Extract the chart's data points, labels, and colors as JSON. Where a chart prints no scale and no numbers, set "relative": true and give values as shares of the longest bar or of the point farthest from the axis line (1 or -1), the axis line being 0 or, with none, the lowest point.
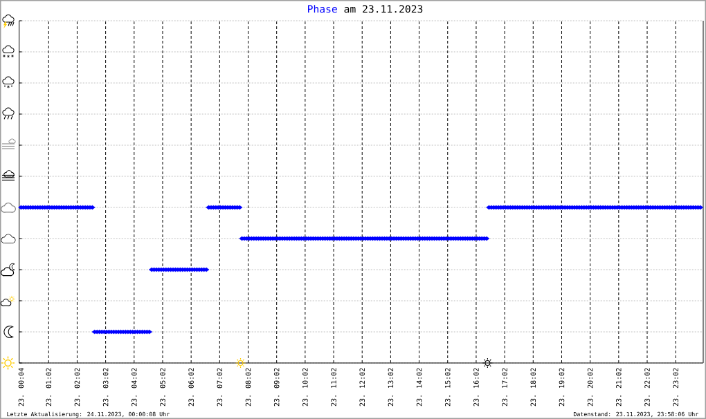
{
  "chart_data": {
    "type": "scatter",
    "title": "Phase am 23.11.2023",
    "relative": true,
    "xlim": [
      "2023-11-23T00:00",
      "2023-11-24T00:00"
    ],
    "xticks": [
      {
        "value": "2023-11-23T00:04",
        "label": "23. 00:04"
      },
      {
        "value": "2023-11-23T01:02",
        "label": "23. 01:02"
      },
      {
        "value": "2023-11-23T02:02",
        "label": "23. 02:02"
      },
      {
        "value": "2023-11-23T03:02",
        "label": "23. 03:02"
      },
      {
        "value": "2023-11-23T04:02",
        "label": "23. 04:02"
      },
      {
        "value": "2023-11-23T05:02",
        "label": "23. 05:02"
      },
      {
        "value": "2023-11-23T06:02",
        "label": "23. 06:02"
      },
      {
        "value": "2023-11-23T07:02",
        "label": "23. 07:02"
      },
      {
        "value": "2023-11-23T08:02",
        "label": "23. 08:02"
      },
      {
        "value": "2023-11-23T09:02",
        "label": "23. 09:02"
      },
      {
        "value": "2023-11-23T10:02",
        "label": "23. 10:02"
      },
      {
        "value": "2023-11-23T11:02",
        "label": "23. 11:02"
      },
      {
        "value": "2023-11-23T12:02",
        "label": "23. 12:02"
      },
      {
        "value": "2023-11-23T13:02",
        "label": "23. 13:02"
      },
      {
        "value": "2023-11-23T14:02",
        "label": "23. 14:02"
      },
      {
        "value": "2023-11-23T15:02",
        "label": "23. 15:02"
      },
      {
        "value": "2023-11-23T16:02",
        "label": "23. 16:02"
      },
      {
        "value": "2023-11-23T17:02",
        "label": "23. 17:02"
      },
      {
        "value": "2023-11-23T18:02",
        "label": "23. 18:02"
      },
      {
        "value": "2023-11-23T19:02",
        "label": "23. 19:02"
      },
      {
        "value": "2023-11-23T20:02",
        "label": "23. 20:02"
      },
      {
        "value": "2023-11-23T21:02",
        "label": "23. 21:02"
      },
      {
        "value": "2023-11-23T22:02",
        "label": "23. 22:02"
      },
      {
        "value": "2023-11-23T23:02",
        "label": "23. 23:02"
      }
    ],
    "tick_labels": "x",
    "grid": true,
    "series": [
      {
        "color": "#0000ff",
        "marker": "diamond",
        "x": [
          "2023-11-23T00:04",
          "2023-11-23T00:09",
          "2023-11-23T00:14",
          "2023-11-23T00:19",
          "2023-11-23T00:24",
          "2023-11-23T00:29",
          "2023-11-23T00:34",
          "2023-11-23T00:39",
          "2023-11-23T00:44",
          "2023-11-23T00:49",
          "2023-11-23T00:54",
          "2023-11-23T00:59",
          "2023-11-23T01:04",
          "2023-11-23T01:09",
          "2023-11-23T01:14",
          "2023-11-23T01:19",
          "2023-11-23T01:24",
          "2023-11-23T01:29",
          "2023-11-23T01:34",
          "2023-11-23T01:39",
          "2023-11-23T01:44",
          "2023-11-23T01:49",
          "2023-11-23T01:54",
          "2023-11-23T01:59",
          "2023-11-23T02:04",
          "2023-11-23T02:09",
          "2023-11-23T02:14",
          "2023-11-23T02:19",
          "2023-11-23T02:24",
          "2023-11-23T02:29",
          "2023-11-23T02:34",
          "2023-11-23T02:39",
          "2023-11-23T02:44",
          "2023-11-23T02:49",
          "2023-11-23T02:54",
          "2023-11-23T02:59",
          "2023-11-23T03:04",
          "2023-11-23T03:09",
          "2023-11-23T03:14",
          "2023-11-23T03:19",
          "2023-11-23T03:24",
          "2023-11-23T03:29",
          "2023-11-23T03:34",
          "2023-11-23T03:39",
          "2023-11-23T03:44",
          "2023-11-23T03:49",
          "2023-11-23T03:54",
          "2023-11-23T03:59",
          "2023-11-23T04:04",
          "2023-11-23T04:09",
          "2023-11-23T04:14",
          "2023-11-23T04:19",
          "2023-11-23T04:24",
          "2023-11-23T04:29",
          "2023-11-23T04:34",
          "2023-11-23T04:39",
          "2023-11-23T04:44",
          "2023-11-23T04:49",
          "2023-11-23T04:54",
          "2023-11-23T04:59",
          "2023-11-23T05:04",
          "2023-11-23T05:09",
          "2023-11-23T05:14",
          "2023-11-23T05:19",
          "2023-11-23T05:24",
          "2023-11-23T05:29",
          "2023-11-23T05:34",
          "2023-11-23T05:39",
          "2023-11-23T05:44",
          "2023-11-23T05:49",
          "2023-11-23T05:54",
          "2023-11-23T05:59",
          "2023-11-23T06:04",
          "2023-11-23T06:09",
          "2023-11-23T06:14",
          "2023-11-23T06:19",
          "2023-11-23T06:24",
          "2023-11-23T06:29",
          "2023-11-23T06:34",
          "2023-11-23T06:39",
          "2023-11-23T06:44",
          "2023-11-23T06:49",
          "2023-11-23T06:54",
          "2023-11-23T06:59",
          "2023-11-23T07:04",
          "2023-11-23T07:09",
          "2023-11-23T07:14",
          "2023-11-23T07:19",
          "2023-11-23T07:24",
          "2023-11-23T07:29",
          "2023-11-23T07:34",
          "2023-11-23T07:39",
          "2023-11-23T07:44",
          "2023-11-23T07:49",
          "2023-11-23T07:54",
          "2023-11-23T07:59",
          "2023-11-23T08:04",
          "2023-11-23T08:09",
          "2023-11-23T08:14",
          "2023-11-23T08:19",
          "2023-11-23T08:24",
          "2023-11-23T08:29",
          "2023-11-23T08:34",
          "2023-11-23T08:39",
          "2023-11-23T08:44",
          "2023-11-23T08:49",
          "2023-11-23T08:54",
          "2023-11-23T08:59",
          "2023-11-23T09:04",
          "2023-11-23T09:09",
          "2023-11-23T09:14",
          "2023-11-23T09:19",
          "2023-11-23T09:24",
          "2023-11-23T09:29",
          "2023-11-23T09:34",
          "2023-11-23T09:39",
          "2023-11-23T09:44",
          "2023-11-23T09:49",
          "2023-11-23T09:54",
          "2023-11-23T09:59",
          "2023-11-23T10:04",
          "2023-11-23T10:09",
          "2023-11-23T10:14",
          "2023-11-23T10:19",
          "2023-11-23T10:24",
          "2023-11-23T10:29",
          "2023-11-23T10:34",
          "2023-11-23T10:39",
          "2023-11-23T10:44",
          "2023-11-23T10:49",
          "2023-11-23T10:54",
          "2023-11-23T10:59",
          "2023-11-23T11:04",
          "2023-11-23T11:09",
          "2023-11-23T11:14",
          "2023-11-23T11:19",
          "2023-11-23T11:24",
          "2023-11-23T11:29",
          "2023-11-23T11:34",
          "2023-11-23T11:39",
          "2023-11-23T11:44",
          "2023-11-23T11:49",
          "2023-11-23T11:54",
          "2023-11-23T11:59",
          "2023-11-23T12:04",
          "2023-11-23T12:09",
          "2023-11-23T12:14",
          "2023-11-23T12:19",
          "2023-11-23T12:24",
          "2023-11-23T12:29",
          "2023-11-23T12:34",
          "2023-11-23T12:39",
          "2023-11-23T12:44",
          "2023-11-23T12:49",
          "2023-11-23T12:54",
          "2023-11-23T12:59",
          "2023-11-23T13:04",
          "2023-11-23T13:09",
          "2023-11-23T13:14",
          "2023-11-23T13:19",
          "2023-11-23T13:24",
          "2023-11-23T13:29",
          "2023-11-23T13:34",
          "2023-11-23T13:39",
          "2023-11-23T13:44",
          "2023-11-23T13:49",
          "2023-11-23T13:54",
          "2023-11-23T13:59",
          "2023-11-23T14:04",
          "2023-11-23T14:09",
          "2023-11-23T14:14",
          "2023-11-23T14:19",
          "2023-11-23T14:24",
          "2023-11-23T14:29",
          "2023-11-23T14:34",
          "2023-11-23T14:39",
          "2023-11-23T14:44",
          "2023-11-23T14:49",
          "2023-11-23T14:54",
          "2023-11-23T14:59",
          "2023-11-23T15:04",
          "2023-11-23T15:09",
          "2023-11-23T15:14",
          "2023-11-23T15:19",
          "2023-11-23T15:24",
          "2023-11-23T15:29",
          "2023-11-23T15:34",
          "2023-11-23T15:39",
          "2023-11-23T15:44",
          "2023-11-23T15:49",
          "2023-11-23T15:54",
          "2023-11-23T15:59",
          "2023-11-23T16:04",
          "2023-11-23T16:09",
          "2023-11-23T16:14",
          "2023-11-23T16:19",
          "2023-11-23T16:24",
          "2023-11-23T16:29",
          "2023-11-23T16:34",
          "2023-11-23T16:39",
          "2023-11-23T16:44",
          "2023-11-23T16:49",
          "2023-11-23T16:54",
          "2023-11-23T16:59",
          "2023-11-23T17:04",
          "2023-11-23T17:09",
          "2023-11-23T17:14",
          "2023-11-23T17:19",
          "2023-11-23T17:24",
          "2023-11-23T17:29",
          "2023-11-23T17:34",
          "2023-11-23T17:39",
          "2023-11-23T17:44",
          "2023-11-23T17:49",
          "2023-11-23T17:54",
          "2023-11-23T17:59",
          "2023-11-23T18:04",
          "2023-11-23T18:09",
          "2023-11-23T18:14",
          "2023-11-23T18:19",
          "2023-11-23T18:24",
          "2023-11-23T18:29",
          "2023-11-23T18:34",
          "2023-11-23T18:39",
          "2023-11-23T18:44",
          "2023-11-23T18:49",
          "2023-11-23T18:54",
          "2023-11-23T18:59",
          "2023-11-23T19:04",
          "2023-11-23T19:09",
          "2023-11-23T19:14",
          "2023-11-23T19:19",
          "2023-11-23T19:24",
          "2023-11-23T19:29",
          "2023-11-23T19:34",
          "2023-11-23T19:39",
          "2023-11-23T19:44",
          "2023-11-23T19:49",
          "2023-11-23T19:54",
          "2023-11-23T19:59",
          "2023-11-23T20:04",
          "2023-11-23T20:09",
          "2023-11-23T20:14",
          "2023-11-23T20:19",
          "2023-11-23T20:24",
          "2023-11-23T20:29",
          "2023-11-23T20:34",
          "2023-11-23T20:39",
          "2023-11-23T20:44",
          "2023-11-23T20:49",
          "2023-11-23T20:54",
          "2023-11-23T20:59",
          "2023-11-23T21:04",
          "2023-11-23T21:09",
          "2023-11-23T21:14",
          "2023-11-23T21:19",
          "2023-11-23T21:24",
          "2023-11-23T21:29",
          "2023-11-23T21:34",
          "2023-11-23T21:39",
          "2023-11-23T21:44",
          "2023-11-23T21:49",
          "2023-11-23T21:54",
          "2023-11-23T21:59",
          "2023-11-23T22:04",
          "2023-11-23T22:09",
          "2023-11-23T22:14",
          "2023-11-23T22:19",
          "2023-11-23T22:24",
          "2023-11-23T22:29",
          "2023-11-23T22:34",
          "2023-11-23T22:39",
          "2023-11-23T22:44",
          "2023-11-23T22:49",
          "2023-11-23T22:54",
          "2023-11-23T22:59",
          "2023-11-23T23:04",
          "2023-11-23T23:09",
          "2023-11-23T23:14",
          "2023-11-23T23:19",
          "2023-11-23T23:24",
          "2023-11-23T23:29",
          "2023-11-23T23:34",
          "2023-11-23T23:39",
          "2023-11-23T23:44",
          "2023-11-23T23:49",
          "2023-11-23T23:54"
        ],
        "values": [
          1,
          1,
          1,
          1,
          1,
          1,
          1,
          1,
          1,
          1,
          1,
          1,
          1,
          1,
          1,
          1,
          1,
          1,
          1,
          1,
          1,
          1,
          1,
          1,
          1,
          1,
          1,
          1,
          1,
          1,
          1,
          0.2,
          0.2,
          0.2,
          0.2,
          0.2,
          0.2,
          0.2,
          0.2,
          0.2,
          0.2,
          0.2,
          0.2,
          0.2,
          0.2,
          0.2,
          0.2,
          0.2,
          0.2,
          0.2,
          0.2,
          0.2,
          0.2,
          0.2,
          0.2,
          0.6,
          0.6,
          0.6,
          0.6,
          0.6,
          0.6,
          0.6,
          0.6,
          0.6,
          0.6,
          0.6,
          0.6,
          0.6,
          0.6,
          0.6,
          0.6,
          0.6,
          0.6,
          0.6,
          0.6,
          0.6,
          0.6,
          0.6,
          0.6,
          1,
          1,
          1,
          1,
          1,
          1,
          1,
          1,
          1,
          1,
          1,
          1,
          1,
          1,
          0.8,
          0.8,
          0.8,
          0.8,
          0.8,
          0.8,
          0.8,
          0.8,
          0.8,
          0.8,
          0.8,
          0.8,
          0.8,
          0.8,
          0.8,
          0.8,
          0.8,
          0.8,
          0.8,
          0.8,
          0.8,
          0.8,
          0.8,
          0.8,
          0.8,
          0.8,
          0.8,
          0.8,
          0.8,
          0.8,
          0.8,
          0.8,
          0.8,
          0.8,
          0.8,
          0.8,
          0.8,
          0.8,
          0.8,
          0.8,
          0.8,
          0.8,
          0.8,
          0.8,
          0.8,
          0.8,
          0.8,
          0.8,
          0.8,
          0.8,
          0.8,
          0.8,
          0.8,
          0.8,
          0.8,
          0.8,
          0.8,
          0.8,
          0.8,
          0.8,
          0.8,
          0.8,
          0.8,
          0.8,
          0.8,
          0.8,
          0.8,
          0.8,
          0.8,
          0.8,
          0.8,
          0.8,
          0.8,
          0.8,
          0.8,
          0.8,
          0.8,
          0.8,
          0.8,
          0.8,
          0.8,
          0.8,
          0.8,
          0.8,
          0.8,
          0.8,
          0.8,
          0.8,
          0.8,
          0.8,
          0.8,
          0.8,
          0.8,
          0.8,
          0.8,
          0.8,
          0.8,
          0.8,
          0.8,
          0.8,
          0.8,
          0.8,
          0.8,
          0.8,
          1,
          1,
          1,
          1,
          1,
          1,
          1,
          1,
          1,
          1,
          1,
          1,
          1,
          1,
          1,
          1,
          1,
          1,
          1,
          1,
          1,
          1,
          1,
          1,
          1,
          1,
          1,
          1,
          1,
          1,
          1,
          1,
          1,
          1,
          1,
          1,
          1,
          1,
          1,
          1,
          1,
          1,
          1,
          1,
          1,
          1,
          1,
          1,
          1,
          1,
          1,
          1,
          1,
          1,
          1,
          1,
          1,
          1,
          1,
          1,
          1,
          1,
          1,
          1,
          1,
          1,
          1,
          1,
          1,
          1,
          1,
          1,
          1,
          1,
          1,
          1,
          1,
          1,
          1,
          1,
          1,
          1,
          1,
          1,
          1,
          1,
          1,
          1,
          1,
          1
        ]
      },
      {
        "colors": [
          "#ffcc00",
          "#000000"
        ],
        "x": [
          "2023-11-23T07:46",
          "2023-11-23T16:26"
        ],
        "values": [
          0,
          0
        ]
      }
    ],
    "annotations": [
      "Letzte Aktualisierung: 24.11.2023, 00:00:08 Uhr",
      "Datenstand: 23.11.2023, 23:58:06 Uhr"
    ]
  }
}
